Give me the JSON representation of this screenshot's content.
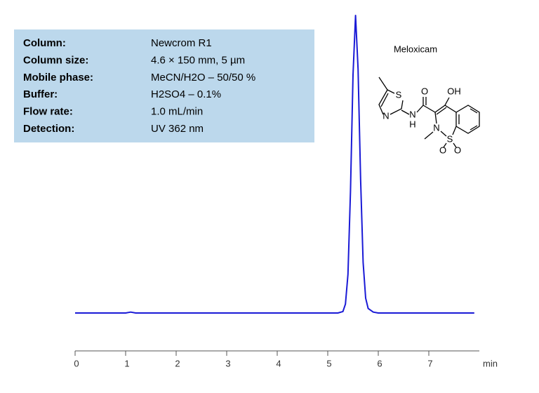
{
  "chart_data": {
    "type": "line",
    "info_box": [
      {
        "label": "Column:",
        "value": "Newcrom R1"
      },
      {
        "label": "Column size:",
        "value": "4.6 × 150 mm, 5 µm"
      },
      {
        "label": "Mobile phase:",
        "value": "MeCN/H2O – 50/50 %"
      },
      {
        "label": "Buffer:",
        "value": "H2SO4 – 0.1%"
      },
      {
        "label": "Flow rate:",
        "value": "1.0 mL/min"
      },
      {
        "label": "Detection:",
        "value": "UV 362 nm"
      }
    ],
    "compound": "Meloxicam",
    "structure_atoms": [
      "S",
      "N",
      "N",
      "H",
      "O",
      "OH",
      "N",
      "S",
      "O",
      "O"
    ],
    "x_label": "min",
    "x": [
      0,
      1,
      1.1,
      1.2,
      2,
      3,
      4,
      5,
      5.2,
      5.3,
      5.35,
      5.4,
      5.45,
      5.5,
      5.55,
      5.6,
      5.65,
      5.7,
      5.75,
      5.8,
      5.9,
      6,
      7,
      7.9
    ],
    "values": [
      0,
      0,
      0.3,
      0,
      0,
      0,
      0,
      0,
      0,
      0.5,
      3,
      13,
      41,
      80,
      100,
      82,
      45,
      17,
      5,
      1.5,
      0.3,
      0,
      0,
      0
    ],
    "color": "#1a1ad6",
    "xlim": [
      0,
      8
    ],
    "xticks": [
      0,
      1,
      2,
      3,
      4,
      5,
      6,
      7
    ],
    "ylim": [
      0,
      100
    ]
  }
}
